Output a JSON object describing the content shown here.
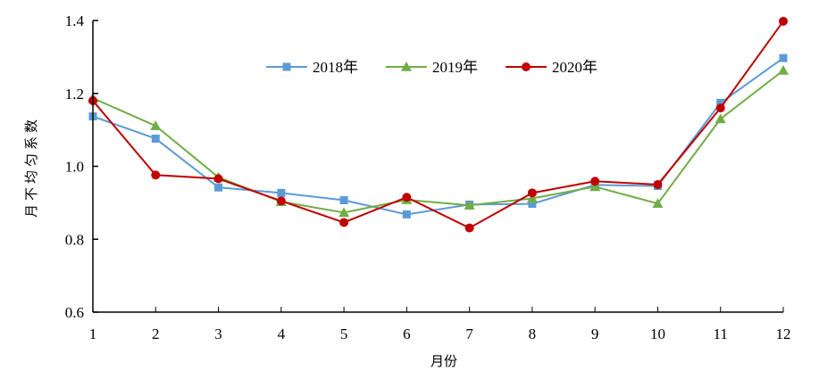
{
  "chart_data": {
    "type": "line",
    "title": "",
    "xlabel": "月份",
    "ylabel": "月不均匀系数",
    "x": [
      1,
      2,
      3,
      4,
      5,
      6,
      7,
      8,
      9,
      10,
      11,
      12
    ],
    "xticks": [
      "1",
      "2",
      "3",
      "4",
      "5",
      "6",
      "7",
      "8",
      "9",
      "10",
      "11",
      "12"
    ],
    "ylim": [
      0.6,
      1.4
    ],
    "yticks": [
      "0.6",
      "0.8",
      "1.0",
      "1.2",
      "1.4"
    ],
    "ytick_values": [
      0.6,
      0.8,
      1.0,
      1.2,
      1.4
    ],
    "grid": false,
    "legend_position": "top-center-inside",
    "series": [
      {
        "name": "2018年",
        "color": "#5B9BD5",
        "marker": "square",
        "values": [
          1.137,
          1.076,
          0.942,
          0.927,
          0.907,
          0.868,
          0.895,
          0.897,
          0.949,
          0.946,
          1.174,
          1.297
        ]
      },
      {
        "name": "2019年",
        "color": "#70AD47",
        "marker": "triangle",
        "values": [
          1.187,
          1.111,
          0.97,
          0.903,
          0.873,
          0.908,
          0.893,
          0.912,
          0.944,
          0.898,
          1.13,
          1.263
        ]
      },
      {
        "name": "2020年",
        "color": "#C00000",
        "marker": "circle",
        "values": [
          1.18,
          0.976,
          0.966,
          0.905,
          0.846,
          0.915,
          0.831,
          0.927,
          0.959,
          0.95,
          1.16,
          1.398
        ]
      }
    ]
  }
}
